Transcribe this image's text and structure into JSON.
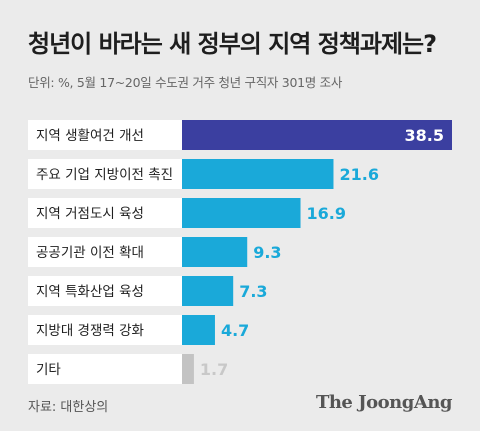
{
  "title": "청년이 바라는 새 정부의 지역 정책과제는?",
  "subtitle": "단위: %, 5월 17~20일 수도권 거주 청년 구직자 301명 조사",
  "source": "자료: 대한상의",
  "logo_text": "The JoongAng",
  "colors": {
    "top_bar": "#3b3fa0",
    "bar": "#1aa9d9",
    "other_bar": "#c3c3c3",
    "label_bg": "#ffffff",
    "top_value": "#ffffff",
    "value": "#1aa9d9",
    "other_value": "#c8c8c8"
  },
  "chart_data": {
    "type": "bar",
    "orientation": "horizontal",
    "categories": [
      "지역 생활여건 개선",
      "주요 기업 지방이전 촉진",
      "지역 거점도시 육성",
      "공공기관 이전 확대",
      "지역 특화산업 육성",
      "지방대 경쟁력 강화",
      "기타"
    ],
    "values": [
      38.5,
      21.6,
      16.9,
      9.3,
      7.3,
      4.7,
      1.7
    ],
    "value_labels": [
      "38.5",
      "21.6",
      "16.9",
      "9.3",
      "7.3",
      "4.7",
      "1.7"
    ],
    "highlight_index": 0,
    "muted_index": 6,
    "title": "청년이 바라는 새 정부의 지역 정책과제는?",
    "xlabel": "",
    "ylabel": "",
    "xlim": [
      0,
      38.5
    ],
    "grid": false,
    "legend": "none"
  }
}
